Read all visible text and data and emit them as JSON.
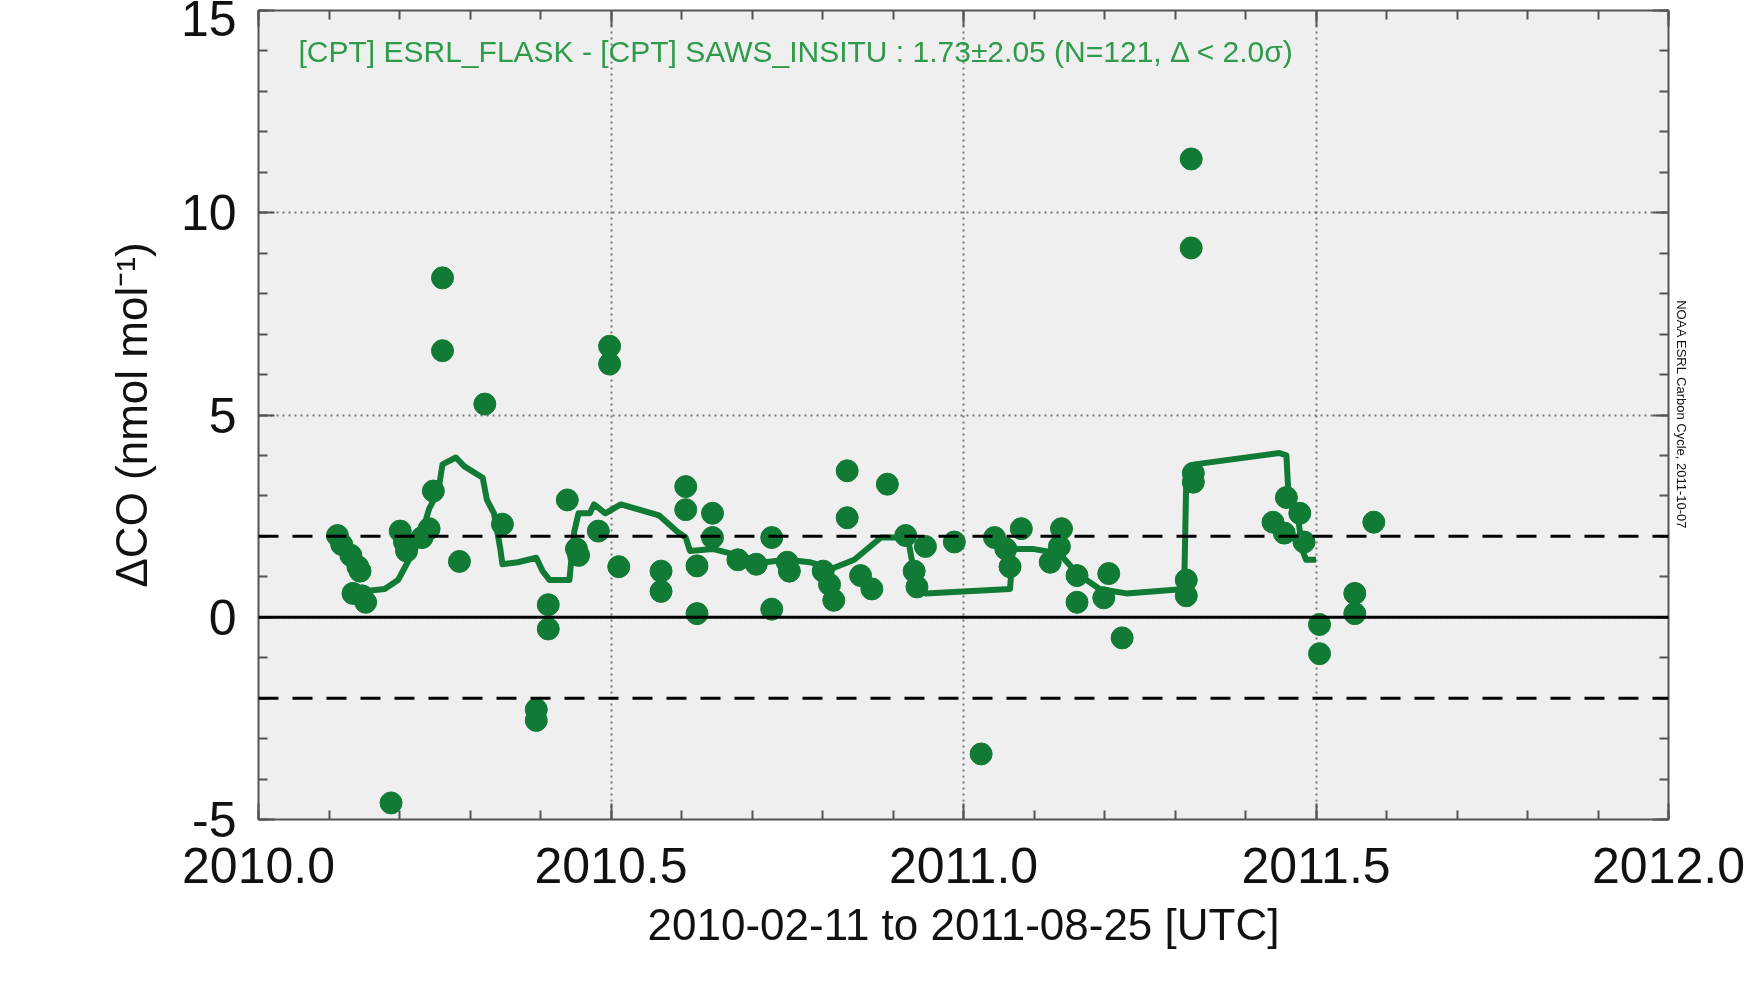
{
  "chart_data": {
    "type": "scatter",
    "xlabel": "2010-02-11 to 2011-08-25 [UTC]",
    "ylabel": "ΔCO (nmol mol⁻¹)",
    "annotations": [
      "[CPT] ESRL_FLASK - [CPT] SAWS_INSITU : 1.73±2.05 (N=121, Δ < 2.0σ)",
      "NOAA ESRL Carbon Cycle, 2011-10-07"
    ],
    "xlim": [
      2010.0,
      2012.0
    ],
    "ylim": [
      -5,
      15
    ],
    "xticks": [
      {
        "value": 2010.0,
        "label": "2010.0"
      },
      {
        "value": 2010.5,
        "label": "2010.5"
      },
      {
        "value": 2011.0,
        "label": "2011.0"
      },
      {
        "value": 2011.5,
        "label": "2011.5"
      },
      {
        "value": 2012.0,
        "label": "2012.0"
      }
    ],
    "yticks": [
      -5,
      0,
      5,
      10,
      15
    ],
    "grid": true,
    "ref_lines": [
      {
        "axis": "y",
        "value": 0,
        "label": null,
        "color": "#000000",
        "line_style": "solid"
      },
      {
        "axis": "y",
        "value": 2.0,
        "label": null,
        "color": "#000000",
        "line_style": "dashed"
      },
      {
        "axis": "y",
        "value": -2.0,
        "label": null,
        "color": "#000000",
        "line_style": "dashed"
      }
    ],
    "series": [
      {
        "color": "#117a35",
        "marker": "circle",
        "x": [
          2010.112,
          2010.118,
          2010.131,
          2010.141,
          2010.144,
          2010.134,
          2010.147,
          2010.152,
          2010.188,
          2010.201,
          2010.207,
          2010.21,
          2010.232,
          2010.242,
          2010.248,
          2010.261,
          2010.261,
          2010.285,
          2010.321,
          2010.346,
          2010.394,
          2010.394,
          2010.411,
          2010.411,
          2010.438,
          2010.451,
          2010.454,
          2010.482,
          2010.498,
          2010.498,
          2010.511,
          2010.571,
          2010.571,
          2010.606,
          2010.606,
          2010.622,
          2010.622,
          2010.644,
          2010.644,
          2010.68,
          2010.706,
          2010.728,
          2010.728,
          2010.75,
          2010.753,
          2010.801,
          2010.81,
          2010.816,
          2010.835,
          2010.835,
          2010.854,
          2010.87,
          2010.892,
          2010.918,
          2010.93,
          2010.934,
          2010.946,
          2010.987,
          2011.025,
          2011.044,
          2011.06,
          2011.066,
          2011.082,
          2011.123,
          2011.139,
          2011.136,
          2011.161,
          2011.161,
          2011.206,
          2011.199,
          2011.225,
          2011.316,
          2011.316,
          2011.323,
          2011.323,
          2011.326,
          2011.326,
          2011.439,
          2011.458,
          2011.455,
          2011.477,
          2011.483,
          2011.505,
          2011.505,
          2011.555,
          2011.555,
          2011.582
        ],
        "values": [
          2.02,
          1.8,
          1.53,
          1.25,
          1.14,
          0.59,
          0.53,
          0.37,
          -4.59,
          2.13,
          1.86,
          1.64,
          1.97,
          2.19,
          3.12,
          8.39,
          6.59,
          1.38,
          5.27,
          2.3,
          -2.28,
          -2.55,
          0.31,
          -0.29,
          2.9,
          1.69,
          1.53,
          2.13,
          6.7,
          6.26,
          1.25,
          1.14,
          0.64,
          3.23,
          2.66,
          1.27,
          0.09,
          2.57,
          1.97,
          1.42,
          1.31,
          1.97,
          0.2,
          1.36,
          1.14,
          1.14,
          0.81,
          0.42,
          3.62,
          2.46,
          1.03,
          0.7,
          3.29,
          2.02,
          1.14,
          0.75,
          1.75,
          1.86,
          -3.38,
          1.97,
          1.69,
          1.25,
          2.19,
          1.36,
          2.19,
          1.75,
          1.03,
          0.37,
          1.08,
          0.48,
          -0.51,
          0.92,
          0.53,
          11.33,
          9.13,
          3.56,
          3.34,
          2.35,
          2.96,
          2.08,
          2.57,
          1.86,
          -0.18,
          -0.9,
          0.59,
          0.09,
          2.35
        ]
      },
      {
        "type": "line",
        "color": "#117a35",
        "marker": "none",
        "line_style": "solid",
        "x": [
          2010.147,
          2010.179,
          2010.198,
          2010.21,
          2010.229,
          2010.242,
          2010.255,
          2010.261,
          2010.28,
          2010.292,
          2010.318,
          2010.324,
          2010.334,
          2010.343,
          2010.346,
          2010.368,
          2010.394,
          2010.403,
          2010.413,
          2010.441,
          2010.444,
          2010.448,
          2010.454,
          2010.47,
          2010.476,
          2010.492,
          2010.514,
          2010.568,
          2010.593,
          2010.606,
          2010.612,
          2010.644,
          2010.669,
          2010.718,
          2010.75,
          2010.782,
          2010.813,
          2010.845,
          2010.883,
          2010.921,
          2010.934,
          2010.946,
          2011.066,
          2011.07,
          2011.098,
          2011.136,
          2011.161,
          2011.193,
          2011.231,
          2011.313,
          2011.316,
          2011.328,
          2011.448,
          2011.458,
          2011.461,
          2011.474,
          2011.48,
          2011.486,
          2011.5
        ],
        "values": [
          0.64,
          0.7,
          0.92,
          1.31,
          1.91,
          2.68,
          3.12,
          3.78,
          3.95,
          3.73,
          3.45,
          2.9,
          2.57,
          1.69,
          1.31,
          1.36,
          1.47,
          1.14,
          0.92,
          0.92,
          1.47,
          2.13,
          2.57,
          2.57,
          2.79,
          2.57,
          2.79,
          2.52,
          2.13,
          1.97,
          1.64,
          1.69,
          1.58,
          1.36,
          1.42,
          1.36,
          1.2,
          1.42,
          1.97,
          1.97,
          0.7,
          0.59,
          0.7,
          1.69,
          1.69,
          1.58,
          1.08,
          0.7,
          0.59,
          0.7,
          3.45,
          3.78,
          4.06,
          4.0,
          3.01,
          2.57,
          1.69,
          1.42,
          1.42
        ]
      }
    ]
  }
}
